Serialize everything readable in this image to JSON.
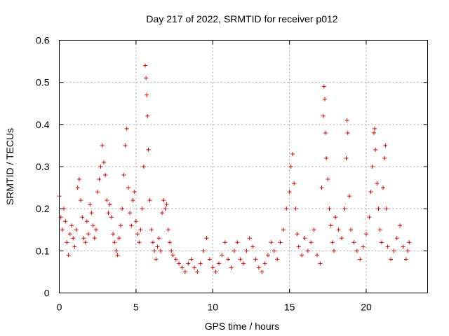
{
  "chart_data": {
    "type": "scatter",
    "title": "Day 217 of 2022, SRMTID for receiver p012",
    "xlabel": "GPS time / hours",
    "ylabel": "SRMTID / TECUs",
    "xlim": [
      0,
      24
    ],
    "ylim": [
      0,
      0.6
    ],
    "xticks": [
      0,
      5,
      10,
      15,
      20
    ],
    "xtick_labels": [
      "0",
      "5",
      "10",
      "15",
      "20"
    ],
    "yticks": [
      0,
      0.1,
      0.2,
      0.3,
      0.4,
      0.5,
      0.6
    ],
    "ytick_labels": [
      "0",
      "0.1",
      "0.2",
      "0.3",
      "0.4",
      "0.5",
      "0.6"
    ],
    "grid": true,
    "marker": "+",
    "color": "#e00000",
    "series": [
      {
        "name": "p012",
        "points": [
          [
            0.0,
            0.23
          ],
          [
            0.1,
            0.18
          ],
          [
            0.2,
            0.15
          ],
          [
            0.3,
            0.2
          ],
          [
            0.4,
            0.17
          ],
          [
            0.5,
            0.12
          ],
          [
            0.6,
            0.09
          ],
          [
            0.7,
            0.14
          ],
          [
            0.8,
            0.16
          ],
          [
            0.9,
            0.13
          ],
          [
            1.0,
            0.11
          ],
          [
            1.1,
            0.15
          ],
          [
            1.2,
            0.25
          ],
          [
            1.3,
            0.27
          ],
          [
            1.4,
            0.22
          ],
          [
            1.5,
            0.18
          ],
          [
            1.6,
            0.13
          ],
          [
            1.7,
            0.12
          ],
          [
            1.8,
            0.17
          ],
          [
            1.9,
            0.14
          ],
          [
            2.0,
            0.21
          ],
          [
            2.1,
            0.19
          ],
          [
            2.2,
            0.16
          ],
          [
            2.3,
            0.13
          ],
          [
            2.4,
            0.15
          ],
          [
            2.5,
            0.24
          ],
          [
            2.6,
            0.27
          ],
          [
            2.7,
            0.3
          ],
          [
            2.8,
            0.35
          ],
          [
            2.9,
            0.31
          ],
          [
            3.0,
            0.28
          ],
          [
            3.1,
            0.22
          ],
          [
            3.2,
            0.19
          ],
          [
            3.3,
            0.21
          ],
          [
            3.4,
            0.18
          ],
          [
            3.5,
            0.14
          ],
          [
            3.6,
            0.12
          ],
          [
            3.7,
            0.1
          ],
          [
            3.8,
            0.09
          ],
          [
            3.9,
            0.13
          ],
          [
            4.0,
            0.16
          ],
          [
            4.1,
            0.2
          ],
          [
            4.2,
            0.28
          ],
          [
            4.3,
            0.35
          ],
          [
            4.4,
            0.39
          ],
          [
            4.5,
            0.25
          ],
          [
            4.6,
            0.19
          ],
          [
            4.7,
            0.16
          ],
          [
            4.8,
            0.22
          ],
          [
            4.9,
            0.24
          ],
          [
            5.0,
            0.17
          ],
          [
            5.1,
            0.14
          ],
          [
            5.2,
            0.12
          ],
          [
            5.3,
            0.15
          ],
          [
            5.4,
            0.2
          ],
          [
            5.5,
            0.3
          ],
          [
            5.6,
            0.54
          ],
          [
            5.65,
            0.51
          ],
          [
            5.7,
            0.47
          ],
          [
            5.75,
            0.42
          ],
          [
            5.8,
            0.34
          ],
          [
            5.9,
            0.22
          ],
          [
            6.0,
            0.15
          ],
          [
            6.1,
            0.12
          ],
          [
            6.2,
            0.1
          ],
          [
            6.3,
            0.08
          ],
          [
            6.4,
            0.11
          ],
          [
            6.5,
            0.13
          ],
          [
            6.6,
            0.1
          ],
          [
            6.7,
            0.19
          ],
          [
            6.8,
            0.22
          ],
          [
            6.9,
            0.2
          ],
          [
            7.0,
            0.21
          ],
          [
            7.1,
            0.15
          ],
          [
            7.2,
            0.12
          ],
          [
            7.3,
            0.1
          ],
          [
            7.4,
            0.09
          ],
          [
            7.6,
            0.08
          ],
          [
            7.8,
            0.07
          ],
          [
            8.0,
            0.06
          ],
          [
            8.2,
            0.05
          ],
          [
            8.4,
            0.07
          ],
          [
            8.6,
            0.08
          ],
          [
            8.8,
            0.06
          ],
          [
            9.0,
            0.05
          ],
          [
            9.2,
            0.07
          ],
          [
            9.4,
            0.1
          ],
          [
            9.6,
            0.13
          ],
          [
            9.8,
            0.08
          ],
          [
            10.0,
            0.06
          ],
          [
            10.2,
            0.05
          ],
          [
            10.4,
            0.07
          ],
          [
            10.6,
            0.09
          ],
          [
            10.8,
            0.12
          ],
          [
            11.0,
            0.08
          ],
          [
            11.2,
            0.06
          ],
          [
            11.4,
            0.1
          ],
          [
            11.6,
            0.12
          ],
          [
            11.8,
            0.08
          ],
          [
            12.0,
            0.07
          ],
          [
            12.2,
            0.1
          ],
          [
            12.4,
            0.13
          ],
          [
            12.6,
            0.11
          ],
          [
            12.8,
            0.08
          ],
          [
            13.0,
            0.06
          ],
          [
            13.2,
            0.05
          ],
          [
            13.4,
            0.07
          ],
          [
            13.6,
            0.09
          ],
          [
            13.8,
            0.12
          ],
          [
            14.0,
            0.1
          ],
          [
            14.2,
            0.08
          ],
          [
            14.4,
            0.12
          ],
          [
            14.6,
            0.15
          ],
          [
            14.8,
            0.2
          ],
          [
            15.0,
            0.24
          ],
          [
            15.1,
            0.3
          ],
          [
            15.2,
            0.33
          ],
          [
            15.3,
            0.26
          ],
          [
            15.4,
            0.2
          ],
          [
            15.5,
            0.14
          ],
          [
            15.6,
            0.11
          ],
          [
            15.8,
            0.09
          ],
          [
            16.0,
            0.13
          ],
          [
            16.2,
            0.1
          ],
          [
            16.4,
            0.12
          ],
          [
            16.6,
            0.15
          ],
          [
            16.8,
            0.09
          ],
          [
            17.0,
            0.07
          ],
          [
            17.1,
            0.25
          ],
          [
            17.2,
            0.42
          ],
          [
            17.25,
            0.49
          ],
          [
            17.3,
            0.46
          ],
          [
            17.35,
            0.38
          ],
          [
            17.4,
            0.32
          ],
          [
            17.5,
            0.27
          ],
          [
            17.6,
            0.2
          ],
          [
            17.7,
            0.16
          ],
          [
            17.8,
            0.12
          ],
          [
            17.9,
            0.1
          ],
          [
            18.0,
            0.18
          ],
          [
            18.2,
            0.15
          ],
          [
            18.4,
            0.13
          ],
          [
            18.6,
            0.2
          ],
          [
            18.7,
            0.32
          ],
          [
            18.75,
            0.41
          ],
          [
            18.8,
            0.38
          ],
          [
            18.9,
            0.23
          ],
          [
            19.0,
            0.15
          ],
          [
            19.2,
            0.12
          ],
          [
            19.4,
            0.1
          ],
          [
            19.6,
            0.08
          ],
          [
            19.8,
            0.11
          ],
          [
            20.0,
            0.14
          ],
          [
            20.2,
            0.18
          ],
          [
            20.3,
            0.24
          ],
          [
            20.4,
            0.3
          ],
          [
            20.5,
            0.38
          ],
          [
            20.55,
            0.39
          ],
          [
            20.6,
            0.34
          ],
          [
            20.7,
            0.26
          ],
          [
            20.8,
            0.2
          ],
          [
            20.9,
            0.15
          ],
          [
            21.0,
            0.12
          ],
          [
            21.1,
            0.25
          ],
          [
            21.2,
            0.32
          ],
          [
            21.25,
            0.35
          ],
          [
            21.3,
            0.2
          ],
          [
            21.4,
            0.11
          ],
          [
            21.6,
            0.08
          ],
          [
            21.8,
            0.1
          ],
          [
            22.0,
            0.13
          ],
          [
            22.2,
            0.16
          ],
          [
            22.4,
            0.11
          ],
          [
            22.6,
            0.08
          ],
          [
            22.7,
            0.1
          ],
          [
            22.8,
            0.12
          ]
        ]
      }
    ]
  }
}
